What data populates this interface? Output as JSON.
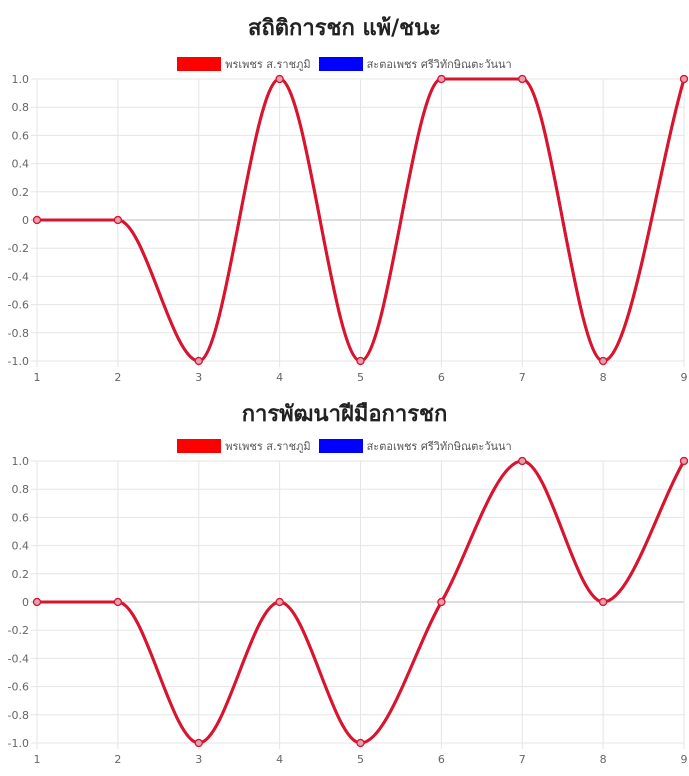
{
  "chart_data": [
    {
      "type": "line",
      "title": "สถิติการชก แพ้/ชนะ",
      "x": [
        1,
        2,
        3,
        4,
        5,
        6,
        7,
        8,
        9
      ],
      "ylim": [
        -1,
        1
      ],
      "yticks": [
        "1.0",
        "0.8",
        "0.6",
        "0.4",
        "0.2",
        "0",
        "-0.2",
        "-0.4",
        "-0.6",
        "-0.8",
        "-1.0"
      ],
      "grid": true,
      "legend_position": "top",
      "series": [
        {
          "name": "พรเพชร ส.ราชภูมิ",
          "color": "#ff0000",
          "values": [
            0,
            0,
            -1,
            1,
            -1,
            1,
            1,
            -1,
            1
          ]
        },
        {
          "name": "สะตอเพชร ศรีวิทักษิณตะวันนา",
          "color": "#0000ff",
          "values": [
            0,
            0,
            -1,
            1,
            -1,
            1,
            1,
            -1,
            1
          ]
        }
      ]
    },
    {
      "type": "line",
      "title": "การพัฒนาฝีมือการชก",
      "x": [
        1,
        2,
        3,
        4,
        5,
        6,
        7,
        8,
        9
      ],
      "ylim": [
        -1,
        1
      ],
      "yticks": [
        "1.0",
        "0.8",
        "0.6",
        "0.4",
        "0.2",
        "0",
        "-0.2",
        "-0.4",
        "-0.6",
        "-0.8",
        "-1.0"
      ],
      "grid": true,
      "legend_position": "top",
      "series": [
        {
          "name": "พรเพชร ส.ราชภูมิ",
          "color": "#ff0000",
          "values": [
            0,
            0,
            -1,
            0,
            -1,
            0,
            1,
            0,
            1
          ]
        },
        {
          "name": "สะตอเพชร ศรีวิทักษิณตะวันนา",
          "color": "#0000ff",
          "values": [
            0,
            0,
            -1,
            0,
            -1,
            0,
            1,
            0,
            1
          ]
        }
      ]
    }
  ],
  "colors": {
    "line_rendered": "#d9142e",
    "point_fill": "#e0a0b0"
  }
}
